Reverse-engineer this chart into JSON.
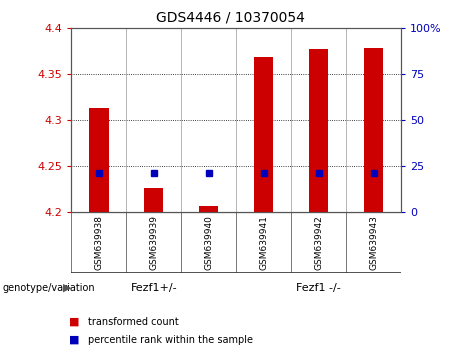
{
  "title": "GDS4446 / 10370054",
  "samples": [
    "GSM639938",
    "GSM639939",
    "GSM639940",
    "GSM639941",
    "GSM639942",
    "GSM639943"
  ],
  "red_values": [
    4.313,
    4.226,
    4.207,
    4.369,
    4.377,
    4.379
  ],
  "blue_percentiles": [
    21.5,
    21.5,
    21.5,
    21.5,
    21.5,
    21.5
  ],
  "ylim_left": [
    4.2,
    4.4
  ],
  "ylim_right": [
    0,
    100
  ],
  "yticks_left": [
    4.2,
    4.25,
    4.3,
    4.35,
    4.4
  ],
  "yticks_right": [
    0,
    25,
    50,
    75,
    100
  ],
  "ytick_labels_right": [
    "0",
    "25",
    "50",
    "75",
    "100%"
  ],
  "group1_label": "Fezf1+/-",
  "group2_label": "Fezf1 -/-",
  "group1_color": "#90EE90",
  "group2_color": "#44CC44",
  "cell_bg_color": "#C8C8C8",
  "red_color": "#CC0000",
  "blue_color": "#0000BB",
  "legend_red": "transformed count",
  "legend_blue": "percentile rank within the sample",
  "genotype_label": "genotype/variation"
}
